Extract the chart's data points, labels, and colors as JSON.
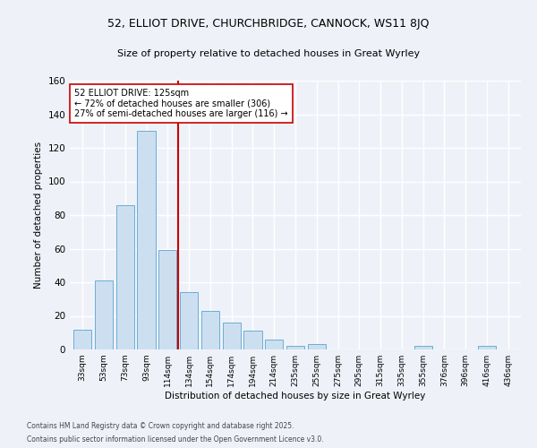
{
  "title1": "52, ELLIOT DRIVE, CHURCHBRIDGE, CANNOCK, WS11 8JQ",
  "title2": "Size of property relative to detached houses in Great Wyrley",
  "xlabel": "Distribution of detached houses by size in Great Wyrley",
  "ylabel": "Number of detached properties",
  "categories": [
    "33sqm",
    "53sqm",
    "73sqm",
    "93sqm",
    "114sqm",
    "134sqm",
    "154sqm",
    "174sqm",
    "194sqm",
    "214sqm",
    "235sqm",
    "255sqm",
    "275sqm",
    "295sqm",
    "315sqm",
    "335sqm",
    "355sqm",
    "376sqm",
    "396sqm",
    "416sqm",
    "436sqm"
  ],
  "values": [
    12,
    41,
    86,
    130,
    59,
    34,
    23,
    16,
    11,
    6,
    2,
    3,
    0,
    0,
    0,
    0,
    2,
    0,
    0,
    2,
    0
  ],
  "bar_color": "#ccdff0",
  "bar_edge_color": "#6aaed6",
  "bar_width": 0.85,
  "vline_x": 4.5,
  "vline_color": "#cc0000",
  "annotation_line1": "52 ELLIOT DRIVE: 125sqm",
  "annotation_line2": "← 72% of detached houses are smaller (306)",
  "annotation_line3": "27% of semi-detached houses are larger (116) →",
  "annotation_box_color": "#ffffff",
  "annotation_box_edge": "#cc0000",
  "ylim": [
    0,
    160
  ],
  "yticks": [
    0,
    20,
    40,
    60,
    80,
    100,
    120,
    140,
    160
  ],
  "footer1": "Contains HM Land Registry data © Crown copyright and database right 2025.",
  "footer2": "Contains public sector information licensed under the Open Government Licence v3.0.",
  "bg_color": "#eef2f8",
  "grid_color": "#ffffff"
}
